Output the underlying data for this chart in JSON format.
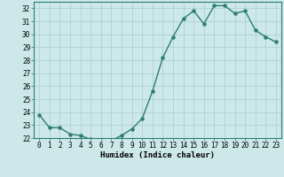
{
  "x": [
    0,
    1,
    2,
    3,
    4,
    5,
    6,
    7,
    8,
    9,
    10,
    11,
    12,
    13,
    14,
    15,
    16,
    17,
    18,
    19,
    20,
    21,
    22,
    23
  ],
  "y": [
    23.8,
    22.8,
    22.8,
    22.3,
    22.2,
    21.9,
    21.8,
    21.8,
    22.2,
    22.7,
    23.5,
    25.6,
    28.2,
    29.8,
    31.2,
    31.8,
    30.8,
    32.2,
    32.2,
    31.6,
    31.8,
    30.3,
    29.8,
    29.4
  ],
  "line_color": "#2d7d6e",
  "marker": "o",
  "marker_size": 2.2,
  "bg_color": "#cce8e8",
  "grid_color": "#aacece",
  "xlabel": "Humidex (Indice chaleur)",
  "ylim": [
    22,
    32.5
  ],
  "xlim": [
    -0.5,
    23.5
  ],
  "yticks": [
    22,
    23,
    24,
    25,
    26,
    27,
    28,
    29,
    30,
    31,
    32
  ],
  "xticks": [
    0,
    1,
    2,
    3,
    4,
    5,
    6,
    7,
    8,
    9,
    10,
    11,
    12,
    13,
    14,
    15,
    16,
    17,
    18,
    19,
    20,
    21,
    22,
    23
  ],
  "tick_fontsize": 5.5,
  "xlabel_fontsize": 6.5,
  "line_width": 1.0
}
